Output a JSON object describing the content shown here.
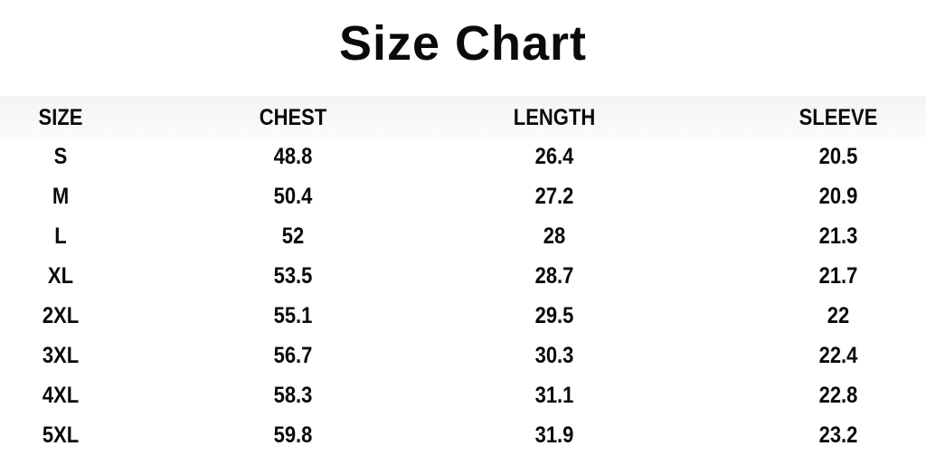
{
  "title": "Size Chart",
  "table": {
    "headers": [
      "SIZE",
      "CHEST",
      "LENGTH",
      "SLEEVE"
    ],
    "rows": [
      [
        "S",
        "48.8",
        "26.4",
        "20.5"
      ],
      [
        "M",
        "50.4",
        "27.2",
        "20.9"
      ],
      [
        "L",
        "52",
        "28",
        "21.3"
      ],
      [
        "XL",
        "53.5",
        "28.7",
        "21.7"
      ],
      [
        "2XL",
        "55.1",
        "29.5",
        "22"
      ],
      [
        "3XL",
        "56.7",
        "30.3",
        "22.4"
      ],
      [
        "4XL",
        "58.3",
        "31.1",
        "22.8"
      ],
      [
        "5XL",
        "59.8",
        "31.9",
        "23.2"
      ]
    ]
  }
}
